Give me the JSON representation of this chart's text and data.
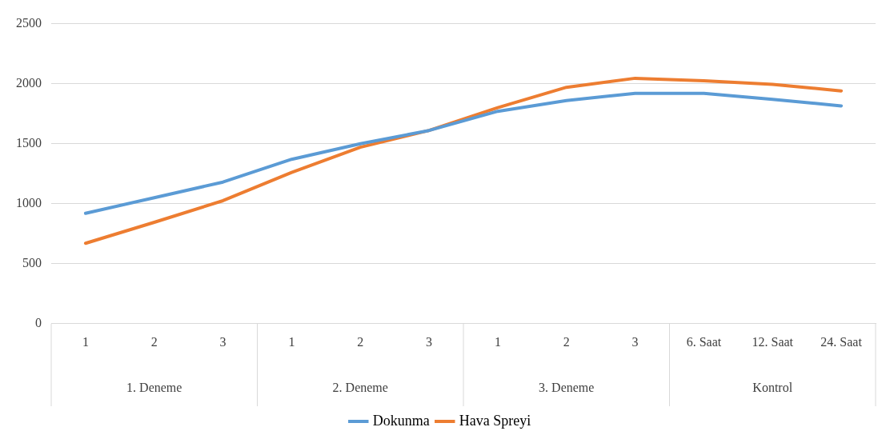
{
  "chart_data": {
    "type": "line",
    "categories": [
      "1",
      "2",
      "3",
      "1",
      "2",
      "3",
      "1",
      "2",
      "3",
      "6. Saat",
      "12. Saat",
      "24. Saat"
    ],
    "annotations": [
      "1. Deneme",
      "2. Deneme",
      "3. Deneme",
      "Kontrol"
    ],
    "series": [
      {
        "name": "Dokunma",
        "color": "#5b9bd5",
        "values": [
          920,
          1050,
          1180,
          1370,
          1500,
          1610,
          1770,
          1860,
          1920,
          1920,
          1870,
          1815
        ]
      },
      {
        "name": "Hava Spreyi",
        "color": "#ed7d31",
        "values": [
          670,
          845,
          1025,
          1260,
          1470,
          1610,
          1800,
          1970,
          2045,
          2025,
          1995,
          1940
        ]
      }
    ],
    "ylim": [
      0,
      2500
    ],
    "yticks": [
      0,
      500,
      1000,
      1500,
      2000,
      2500
    ],
    "grid": "y",
    "legend": "bottom",
    "marker": "none",
    "line_style": "solid"
  }
}
